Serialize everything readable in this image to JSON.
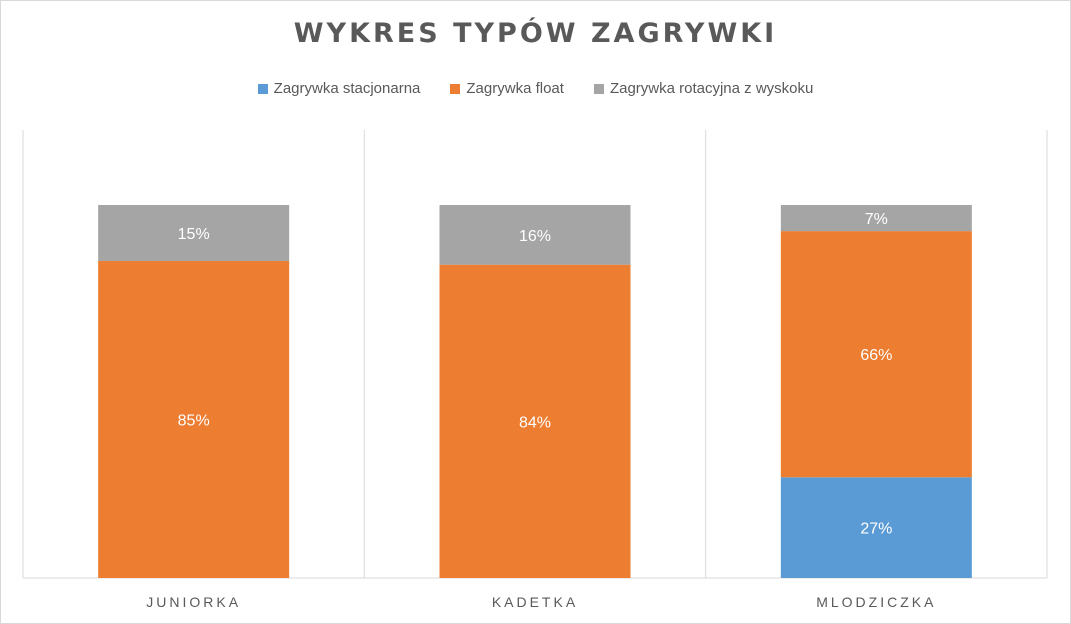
{
  "chart_data": {
    "type": "bar",
    "stacked": true,
    "title": "WYKRES TYPÓW ZAGRYWKI",
    "categories": [
      "JUNIORKA",
      "KADETKA",
      "MLODZICZKA"
    ],
    "series": [
      {
        "name": "Zagrywka stacjonarna",
        "color": "#5b9bd5",
        "values": [
          0,
          0,
          27
        ],
        "labels": [
          "",
          "",
          "27%"
        ]
      },
      {
        "name": "Zagrywka float",
        "color": "#ed7d31",
        "values": [
          85,
          84,
          66
        ],
        "labels": [
          "85%",
          "84%",
          "66%"
        ]
      },
      {
        "name": "Zagrywka rotacyjna z wyskoku",
        "color": "#a5a5a5",
        "values": [
          15,
          16,
          7
        ],
        "labels": [
          "15%",
          "16%",
          "7%"
        ]
      }
    ],
    "ylim": [
      0,
      100
    ],
    "legend_position": "top",
    "gridlines": "vertical category separators"
  }
}
